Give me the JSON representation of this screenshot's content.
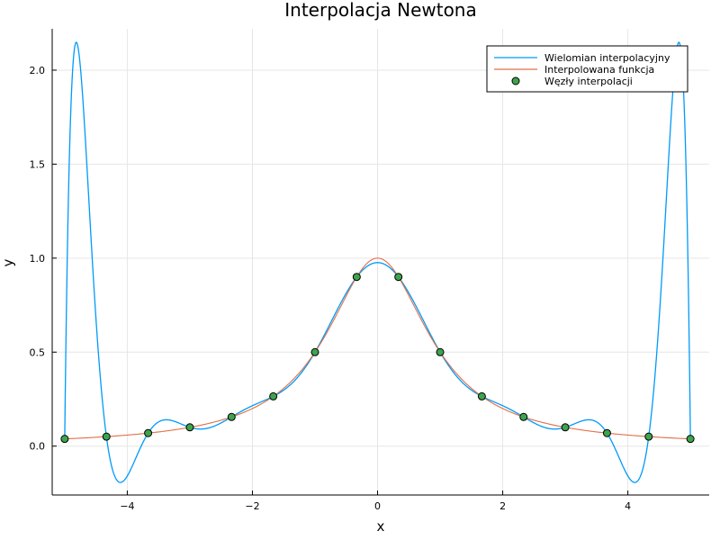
{
  "chart_data": {
    "type": "line",
    "title": "Interpolacja Newtona",
    "xlabel": "x",
    "ylabel": "y",
    "xlim": [
      -5.2,
      5.3
    ],
    "ylim": [
      -0.26,
      2.22
    ],
    "xticks": [
      -4,
      -2,
      0,
      2,
      4
    ],
    "xtick_labels": [
      "−4",
      "−2",
      "0",
      "2",
      "4"
    ],
    "yticks": [
      0.0,
      0.5,
      1.0,
      1.5,
      2.0
    ],
    "ytick_labels": [
      "0.0",
      "0.5",
      "1.0",
      "1.5",
      "2.0"
    ],
    "grid": true,
    "legend_position": "top-right",
    "colors": {
      "polynomial": "#009af9",
      "function": "#e26f46",
      "nodes": "#3da44d"
    },
    "series": [
      {
        "name": "Wielomian interpolacyjny",
        "kind": "line",
        "color": "#009af9",
        "description_values": "Newton interpolating polynomial through the 16 nodes"
      },
      {
        "name": "Interpolowana funkcja",
        "kind": "line",
        "color": "#e26f46",
        "function": "1/(1+x^2)",
        "x_range": [
          -5,
          5
        ]
      },
      {
        "name": "Węzły interpolacji",
        "kind": "scatter",
        "color": "#3da44d",
        "x": [
          -5.0,
          -4.3333,
          -3.6667,
          -3.0,
          -2.3333,
          -1.6667,
          -1.0,
          -0.3333,
          0.3333,
          1.0,
          1.6667,
          2.3333,
          3.0,
          3.6667,
          4.3333,
          5.0
        ],
        "y": [
          0.0385,
          0.0505,
          0.0692,
          0.1,
          0.1552,
          0.2647,
          0.5,
          0.9,
          0.9,
          0.5,
          0.2647,
          0.1552,
          0.1,
          0.0692,
          0.0505,
          0.0385
        ]
      }
    ]
  }
}
